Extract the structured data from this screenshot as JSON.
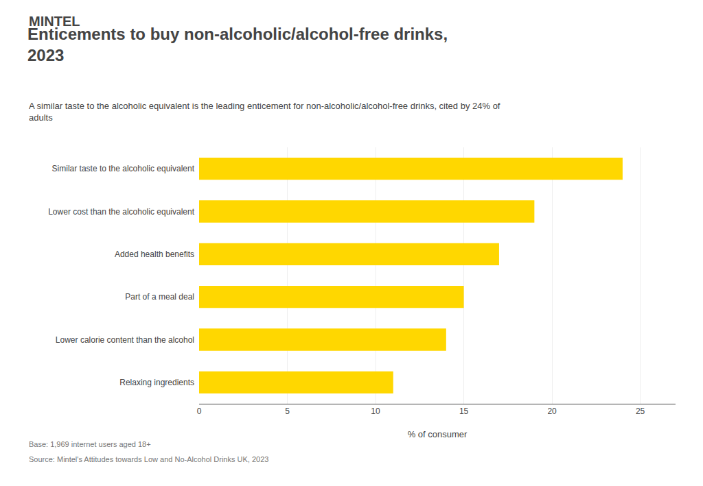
{
  "chart_data": {
    "type": "bar",
    "orientation": "horizontal",
    "title": "Enticements to buy non-alcoholic/alcohol-free drinks,\n2023",
    "subtitle": "A similar taste to the alcoholic equivalent is the leading enticement for non-alcoholic/alcohol-free drinks, cited by 24% of\nadults",
    "annotations": [
      "MINTEL",
      "Base: 1,969 internet users aged 18+",
      "Source: Mintel's Attitudes towards Low and No-Alcohol Drinks UK, 2023"
    ],
    "xlabel": "% of consumer",
    "categories": [
      "Similar taste to the alcoholic equivalent",
      "Lower cost than the alcoholic equivalent",
      "Added health benefits",
      "Part of a meal deal",
      "Lower calorie content than the alcohol",
      "Relaxing ingredients"
    ],
    "values": [
      24,
      19,
      17,
      15,
      14,
      11
    ],
    "color": "#FFD700",
    "xlim": [
      0,
      27
    ],
    "xticks": [
      0,
      5,
      10,
      15,
      20,
      25
    ],
    "grid": true
  }
}
